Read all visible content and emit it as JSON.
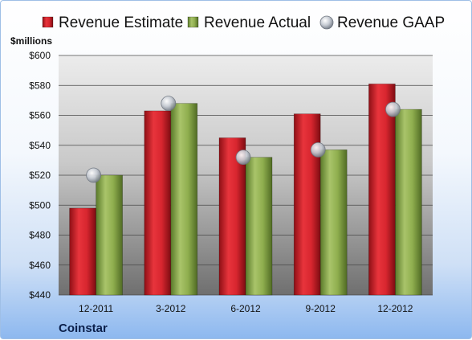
{
  "chart_data": {
    "type": "bar",
    "ylabel": "$millions",
    "company": "Coinstar",
    "ylim": [
      440,
      600
    ],
    "ytick_step": 20,
    "ytick_prefix": "$",
    "categories": [
      "12-2011",
      "3-2012",
      "6-2012",
      "9-2012",
      "12-2012"
    ],
    "series": [
      {
        "name": "Revenue Estimate",
        "kind": "bar",
        "color": "#d8262f",
        "values": [
          498,
          563,
          545,
          561,
          581
        ]
      },
      {
        "name": "Revenue Actual",
        "kind": "bar",
        "color": "#8fae4e",
        "values": [
          520,
          568,
          532,
          537,
          564
        ]
      },
      {
        "name": "Revenue GAAP",
        "kind": "marker",
        "color": "#c7ccd4",
        "values": [
          520,
          568,
          532,
          537,
          564
        ]
      }
    ],
    "legend_position": "top",
    "grid": true
  }
}
